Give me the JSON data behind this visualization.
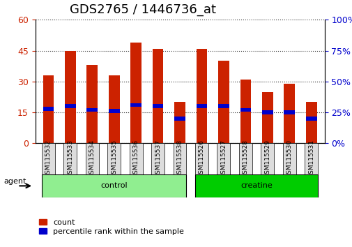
{
  "title": "GDS2765 / 1446736_at",
  "samples": [
    "GSM115532",
    "GSM115533",
    "GSM115534",
    "GSM115535",
    "GSM115536",
    "GSM115537",
    "GSM115538",
    "GSM115526",
    "GSM115527",
    "GSM115528",
    "GSM115529",
    "GSM115530",
    "GSM115531"
  ],
  "count_values": [
    33,
    45,
    38,
    33,
    49,
    46,
    20,
    46,
    40,
    31,
    25,
    29,
    20
  ],
  "percentile_values": [
    28,
    30,
    27,
    26,
    31,
    30,
    20,
    30,
    30,
    27,
    25,
    25,
    20
  ],
  "groups": [
    {
      "label": "control",
      "indices": [
        0,
        1,
        2,
        3,
        4,
        5,
        6
      ],
      "color": "#90EE90"
    },
    {
      "label": "creatine",
      "indices": [
        7,
        8,
        9,
        10,
        11,
        12
      ],
      "color": "#00CC00"
    }
  ],
  "agent_label": "agent",
  "ylim_left": [
    0,
    60
  ],
  "ylim_right": [
    0,
    100
  ],
  "yticks_left": [
    0,
    15,
    30,
    45,
    60
  ],
  "yticks_right": [
    0,
    25,
    50,
    75,
    100
  ],
  "count_color": "#CC2200",
  "percentile_color": "#0000CC",
  "bar_width": 0.5,
  "tick_bg_color": "#DDDDDD",
  "plot_bg_color": "#FFFFFF",
  "grid_color": "#333333",
  "title_fontsize": 13,
  "axis_fontsize": 9,
  "label_fontsize": 8,
  "legend_fontsize": 8
}
